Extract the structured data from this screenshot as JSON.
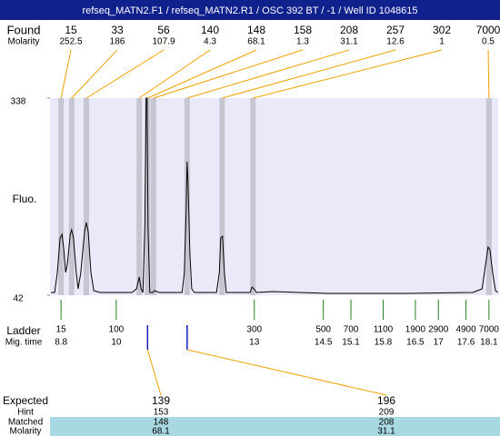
{
  "title": "refseq_MATN2.F1 / refseq_MATN2.R1 / OSC 392 BT / -1 / Well ID 1048615",
  "found": {
    "label": "Found",
    "molarity_label": "Molarity",
    "sizes": [
      15,
      33,
      56,
      140,
      148,
      158,
      208,
      257,
      302,
      7000
    ],
    "molarity": [
      252.5,
      186,
      107.9,
      4.3,
      68.1,
      1.3,
      31.1,
      12.6,
      1,
      0.5
    ],
    "times": [
      8.8,
      9.03,
      9.35,
      10.5,
      10.68,
      10.81,
      11.54,
      12.3,
      12.97,
      18.1
    ]
  },
  "ladder": {
    "label": "Ladder",
    "time_label": "Mig. time",
    "sizes": [
      15,
      100,
      300,
      500,
      700,
      1100,
      1900,
      2900,
      4900,
      7000
    ],
    "times": [
      8.8,
      10,
      13,
      14.5,
      15.1,
      15.8,
      16.5,
      17,
      17.6,
      18.1
    ]
  },
  "chart_data": {
    "type": "line",
    "ylabel": "Fluo.",
    "ylim": [
      42,
      338
    ],
    "yticks": [
      42,
      338
    ],
    "xlim": [
      8.56,
      18.3
    ],
    "x": [
      8.58,
      8.66,
      8.72,
      8.78,
      8.82,
      8.86,
      8.9,
      8.94,
      9.0,
      9.03,
      9.07,
      9.13,
      9.17,
      9.23,
      9.31,
      9.35,
      9.39,
      9.45,
      9.51,
      9.65,
      10.34,
      10.44,
      10.5,
      10.54,
      10.58,
      10.62,
      10.65,
      10.67,
      10.69,
      10.73,
      10.79,
      10.83,
      10.93,
      11.43,
      11.48,
      11.52,
      11.54,
      11.56,
      11.6,
      11.64,
      11.7,
      12.18,
      12.24,
      12.27,
      12.31,
      12.35,
      12.39,
      12.91,
      12.95,
      12.99,
      13.05,
      13.4,
      14.59,
      15.38,
      16.37,
      17.75,
      17.95,
      18.03,
      18.08,
      18.12,
      18.18,
      18.24,
      18.3
    ],
    "series": [
      {
        "color": "#000000",
        "values": [
          46.1,
          46.1,
          76.1,
          127.9,
          133.4,
          110.2,
          76.1,
          89.7,
          133.4,
          140.2,
          127.9,
          76.1,
          51.5,
          76.1,
          137.5,
          151.1,
          137.5,
          76.1,
          48.8,
          46.1,
          46.1,
          51.5,
          69.3,
          51.5,
          46.1,
          144.3,
          338,
          338,
          144.3,
          46.1,
          46.1,
          48.8,
          46.1,
          46.1,
          76.1,
          171.6,
          242.5,
          212.5,
          103.4,
          51.5,
          46.1,
          46.1,
          76.1,
          127.9,
          130.7,
          76.1,
          46.1,
          46.1,
          54.3,
          51.5,
          46.1,
          47.5,
          44.7,
          44.7,
          44.7,
          46.1,
          51.5,
          89.7,
          114.3,
          110.2,
          76.1,
          48.8,
          46.1
        ]
      }
    ]
  },
  "expected": {
    "label": "Expected",
    "hint_label": "Hint",
    "matched_label": "Matched",
    "molarity_label": "Molarity",
    "columns": [
      {
        "expected": 139,
        "hint": 153,
        "matched": 148,
        "molarity": 68.1
      },
      {
        "expected": 196,
        "hint": 209,
        "matched": 208,
        "molarity": 31.1
      }
    ]
  }
}
